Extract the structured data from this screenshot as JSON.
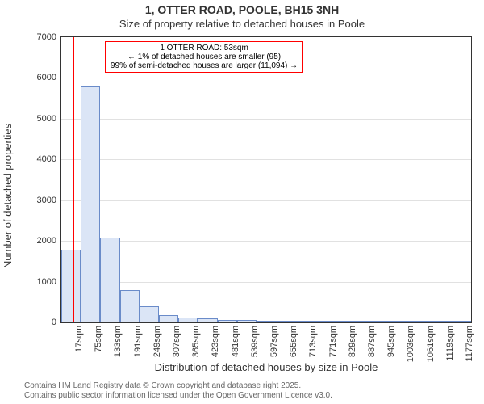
{
  "titles": {
    "line1": "1, OTTER ROAD, POOLE, BH15 3NH",
    "line2": "Size of property relative to detached houses in Poole"
  },
  "axes": {
    "ylabel": "Number of detached properties",
    "xlabel": "Distribution of detached houses by size in Poole",
    "ylim": [
      0,
      7000
    ],
    "ytick_step": 1000,
    "label_fontsize": 13,
    "tick_fontsize": 11,
    "tick_color": "#333333"
  },
  "chart": {
    "type": "histogram",
    "x_start": 17,
    "x_step": 58,
    "bar_count": 21,
    "values": [
      1780,
      5800,
      2080,
      800,
      400,
      180,
      120,
      90,
      60,
      50,
      40,
      30,
      20,
      15,
      10,
      10,
      10,
      10,
      10,
      10,
      10
    ],
    "bar_fill": "#dbe5f6",
    "bar_border": "#6a8bc9",
    "background": "#ffffff",
    "grid_color": "#cccccc"
  },
  "marker": {
    "x_value": 53,
    "color": "#ff0000"
  },
  "info_box": {
    "border_color": "#ff0000",
    "lines": [
      "1 OTTER ROAD: 53sqm",
      "← 1% of detached houses are smaller (95)",
      "99% of semi-detached houses are larger (11,094) →"
    ],
    "fontsize": 10
  },
  "title_style": {
    "fontsize1": 14,
    "fontsize2": 13,
    "color": "#333333"
  },
  "footer": {
    "line1": "Contains HM Land Registry data © Crown copyright and database right 2025.",
    "line2": "Contains public sector information licensed under the Open Government Licence v3.0.",
    "fontsize": 10,
    "color": "#666666"
  }
}
